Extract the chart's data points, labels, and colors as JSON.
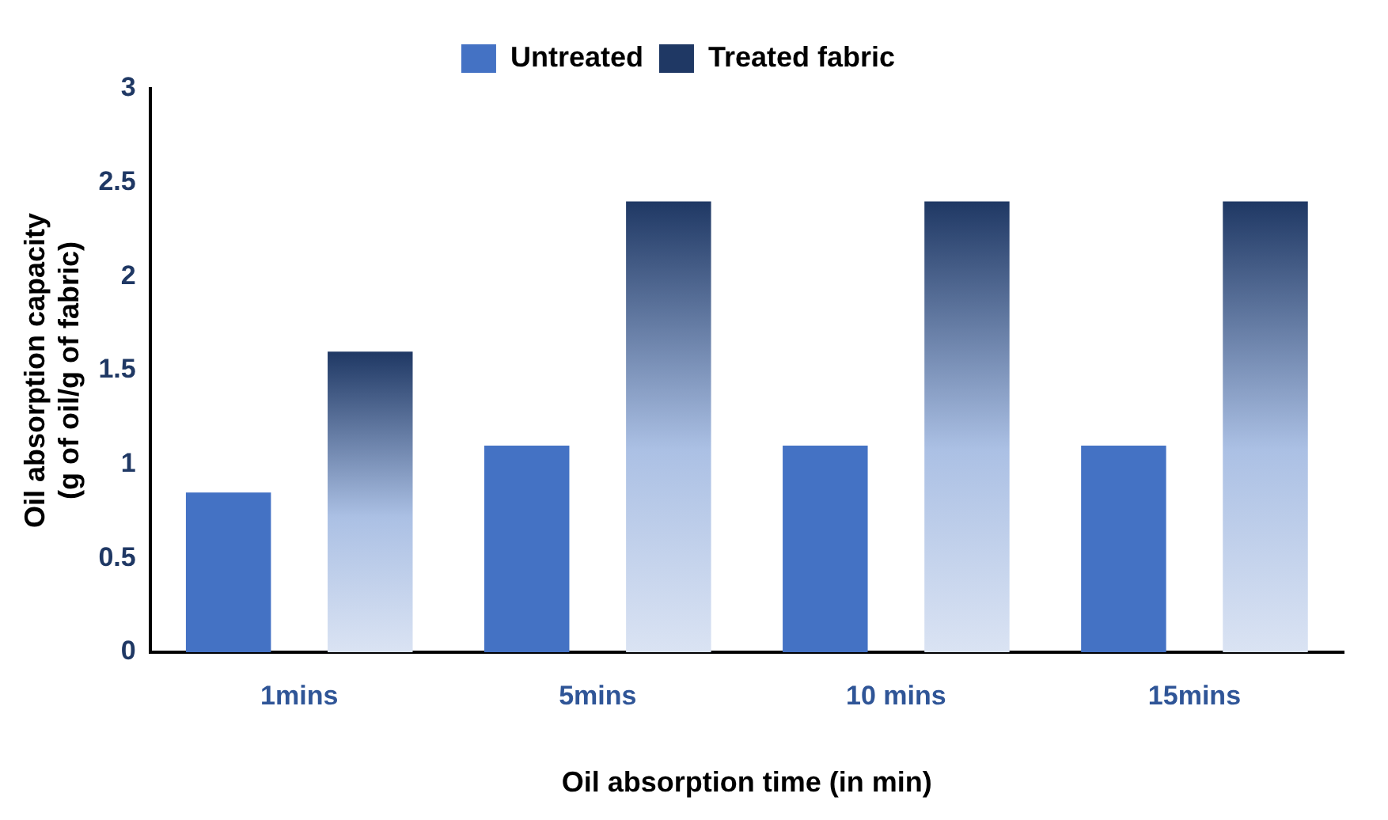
{
  "chart_data": {
    "type": "bar",
    "xlabel": "Oil absorption time (in min)",
    "ylabel": "Oil absorption capacity\n(g of oil/g of fabric)",
    "categories": [
      "1mins",
      "5mins",
      "10 mins",
      "15mins"
    ],
    "series": [
      {
        "name": "Untreated",
        "color": "#4472c4",
        "values": [
          0.85,
          1.1,
          1.1,
          1.1
        ]
      },
      {
        "name": "Treated fabric",
        "color": "#1f3864",
        "values": [
          1.6,
          2.4,
          2.4,
          2.4
        ]
      }
    ],
    "ylim": [
      0,
      3
    ],
    "yticks": [
      0,
      0.5,
      1,
      1.5,
      2,
      2.5,
      3
    ],
    "grid": false,
    "legend": "top"
  }
}
